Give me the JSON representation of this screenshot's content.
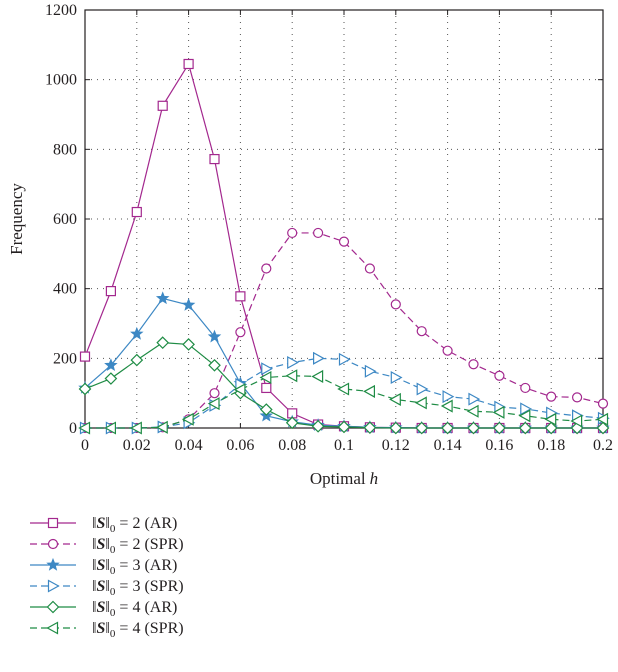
{
  "chart_data": {
    "type": "line",
    "xlabel": "Optimal",
    "xlabel_var": "h",
    "ylabel": "Frequency",
    "xlim": [
      0,
      0.2
    ],
    "ylim": [
      0,
      1200
    ],
    "grid": true,
    "legend_position": "below plot",
    "x_ticks": [
      "0",
      "0.02",
      "0.04",
      "0.06",
      "0.08",
      "0.1",
      "0.12",
      "0.14",
      "0.16",
      "0.18",
      "0.2"
    ],
    "y_ticks": [
      "0",
      "200",
      "400",
      "600",
      "800",
      "1000",
      "1200"
    ],
    "x": [
      0,
      0.01,
      0.02,
      0.03,
      0.04,
      0.05,
      0.06,
      0.07,
      0.08,
      0.09,
      0.1,
      0.11,
      0.12,
      0.13,
      0.14,
      0.15,
      0.16,
      0.17,
      0.18,
      0.19,
      0.2
    ],
    "series": [
      {
        "name": "‖S‖0 = 2 (AR)",
        "legend_n": "2",
        "legend_method": "(AR)",
        "color": "#a3288e",
        "marker": "square",
        "dashed": false,
        "values": [
          205,
          393,
          620,
          925,
          1045,
          772,
          378,
          115,
          42,
          10,
          5,
          2,
          1,
          0,
          0,
          0,
          0,
          0,
          0,
          0,
          0
        ]
      },
      {
        "name": "‖S‖0 = 2 (SPR)",
        "legend_n": "2",
        "legend_method": "(SPR)",
        "color": "#a3288e",
        "marker": "circle",
        "dashed": true,
        "values": [
          0,
          0,
          0,
          2,
          25,
          100,
          275,
          458,
          560,
          560,
          535,
          458,
          355,
          278,
          222,
          183,
          150,
          115,
          90,
          88,
          70
        ]
      },
      {
        "name": "‖S‖0 = 3 (AR)",
        "legend_n": "3",
        "legend_method": "(AR)",
        "color": "#3d88c4",
        "marker": "star",
        "dashed": false,
        "values": [
          115,
          180,
          270,
          372,
          353,
          262,
          128,
          35,
          18,
          8,
          5,
          2,
          1,
          0,
          0,
          0,
          0,
          0,
          0,
          0,
          0
        ]
      },
      {
        "name": "‖S‖0 = 3 (SPR)",
        "legend_n": "3",
        "legend_method": "(SPR)",
        "color": "#3d88c4",
        "marker": "triangle-right",
        "dashed": true,
        "values": [
          0,
          0,
          0,
          3,
          15,
          65,
          125,
          170,
          188,
          200,
          197,
          163,
          145,
          112,
          90,
          83,
          60,
          55,
          43,
          35,
          28
        ]
      },
      {
        "name": "‖S‖0 = 4 (AR)",
        "legend_n": "4",
        "legend_method": "(AR)",
        "color": "#1f8c45",
        "marker": "diamond",
        "dashed": false,
        "values": [
          112,
          142,
          195,
          245,
          240,
          180,
          100,
          53,
          15,
          5,
          3,
          1,
          0,
          0,
          0,
          0,
          0,
          0,
          0,
          0,
          0
        ]
      },
      {
        "name": "‖S‖0 = 4 (SPR)",
        "legend_n": "4",
        "legend_method": "(SPR)",
        "color": "#1f8c45",
        "marker": "triangle-left",
        "dashed": true,
        "values": [
          0,
          0,
          0,
          2,
          25,
          70,
          110,
          145,
          150,
          148,
          112,
          105,
          82,
          72,
          63,
          48,
          45,
          35,
          25,
          20,
          25
        ]
      }
    ]
  }
}
